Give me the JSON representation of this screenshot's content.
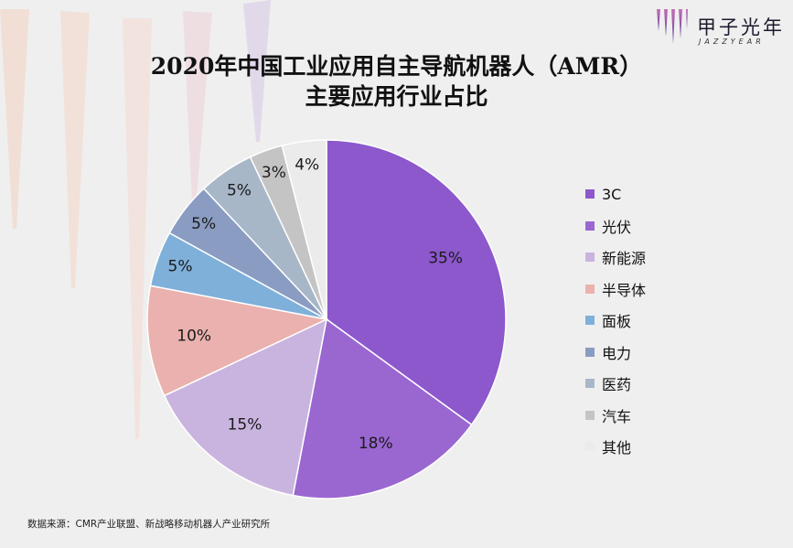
{
  "title_line1": "2020年中国工业应用自主导航机器人（AMR）",
  "title_line2": "主要应用行业占比",
  "brand": {
    "name_cn": "甲子光年",
    "name_en": "JAZZYEAR"
  },
  "source": "数据来源：CMR产业联盟、新战略移动机器人产业研究所",
  "chart_data": {
    "type": "pie",
    "title": "2020年中国工业应用自主导航机器人（AMR）主要应用行业占比",
    "legend_position": "right",
    "start_angle_deg": 0,
    "direction": "clockwise",
    "categories": [
      "3C",
      "光伏",
      "新能源",
      "半导体",
      "面板",
      "电力",
      "医药",
      "汽车",
      "其他"
    ],
    "values": [
      35,
      18,
      15,
      10,
      5,
      5,
      5,
      3,
      4
    ],
    "labels": [
      "35%",
      "18%",
      "15%",
      "10%",
      "5%",
      "5%",
      "5%",
      "3%",
      "4%"
    ],
    "colors": [
      "#8c58cc",
      "#9a67d1",
      "#c9b4df",
      "#eab1ae",
      "#7fb0da",
      "#8a9cc2",
      "#a7b7c8",
      "#c4c4c4",
      "#ebebeb"
    ]
  }
}
